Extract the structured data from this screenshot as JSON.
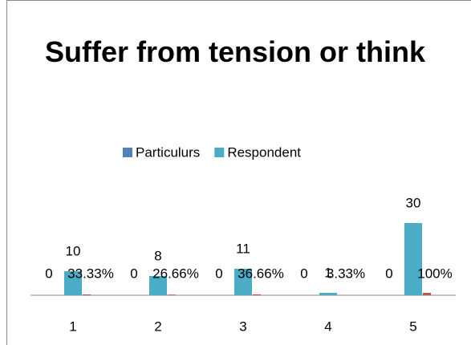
{
  "chart_data": {
    "type": "bar",
    "title": "Suffer from tension or think",
    "categories": [
      "1",
      "2",
      "3",
      "4",
      "5"
    ],
    "series": [
      {
        "name": "Particulurs",
        "color": "#4f81bd",
        "values": [
          0,
          0,
          0,
          0,
          0
        ]
      },
      {
        "name": "Respondent",
        "color": "#4bacc6",
        "values": [
          10,
          8,
          11,
          1,
          30
        ]
      },
      {
        "color": "#c0504d",
        "values": [
          0.3333,
          0.2666,
          0.3666,
          0.0333,
          1
        ],
        "value_labels": [
          "33.33%",
          "26.66%",
          "36.66%",
          "3.33%",
          "100%"
        ]
      }
    ],
    "legend": "top"
  }
}
